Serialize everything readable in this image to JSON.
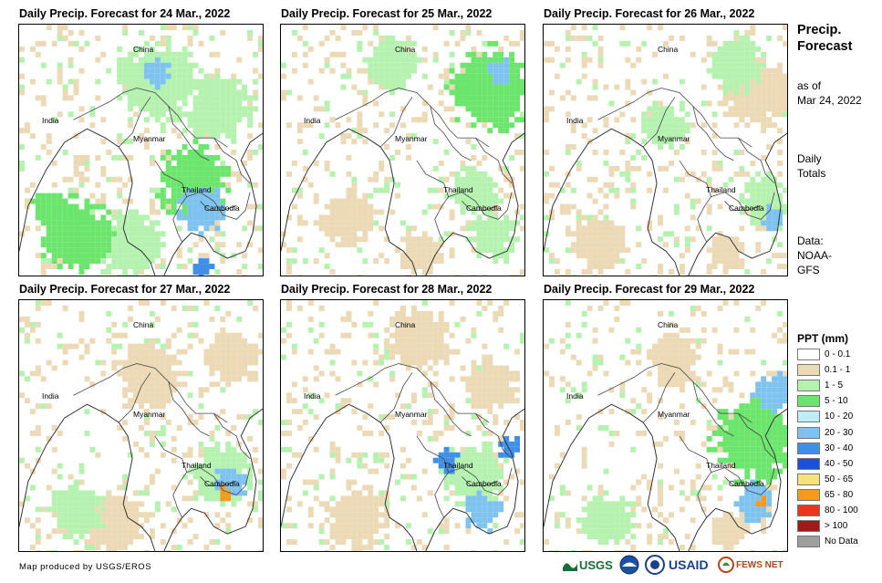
{
  "panels": [
    {
      "title": "Daily Precip. Forecast for 24 Mar., 2022",
      "variant": 0
    },
    {
      "title": "Daily Precip. Forecast for 25 Mar., 2022",
      "variant": 1
    },
    {
      "title": "Daily Precip. Forecast for 26 Mar., 2022",
      "variant": 2
    },
    {
      "title": "Daily Precip. Forecast for 27 Mar., 2022",
      "variant": 3
    },
    {
      "title": "Daily Precip. Forecast for 28 Mar., 2022",
      "variant": 4
    },
    {
      "title": "Daily Precip. Forecast for 29 Mar., 2022",
      "variant": 5
    }
  ],
  "map_labels": {
    "china": "China",
    "india": "India",
    "myanmar": "Myanmar",
    "thailand": "Thailand",
    "cambodia": "Cambodia"
  },
  "sidebar": {
    "title": "Precip. Forecast",
    "as_of": "as of",
    "date": "Mar 24, 2022",
    "daily": "Daily",
    "totals": "Totals",
    "data_label": "Data:",
    "source1": "NOAA-",
    "source2": "GFS"
  },
  "legend": {
    "title": "PPT (mm)",
    "items": [
      {
        "label": "0 - 0.1",
        "color": "#ffffff"
      },
      {
        "label": "0.1 - 1",
        "color": "#ecd9b5"
      },
      {
        "label": "1 - 5",
        "color": "#b5f2b0"
      },
      {
        "label": "5 - 10",
        "color": "#6be56b"
      },
      {
        "label": "10 - 20",
        "color": "#bdeef5"
      },
      {
        "label": "20 - 30",
        "color": "#7ec3ef"
      },
      {
        "label": "30 - 40",
        "color": "#3f8fe6"
      },
      {
        "label": "40 - 50",
        "color": "#1c50d8"
      },
      {
        "label": "50 - 65",
        "color": "#f5e27a"
      },
      {
        "label": "65 - 80",
        "color": "#f59a1c"
      },
      {
        "label": "80 - 100",
        "color": "#e8371a"
      },
      {
        "label": "> 100",
        "color": "#a11a1a"
      },
      {
        "label": "No Data",
        "color": "#9e9e9e"
      }
    ]
  },
  "credit": "Map produced by USGS/EROS",
  "logos": {
    "usgs": "USGS",
    "usaid": "USAID",
    "fewsnet": "FEWS NET"
  }
}
